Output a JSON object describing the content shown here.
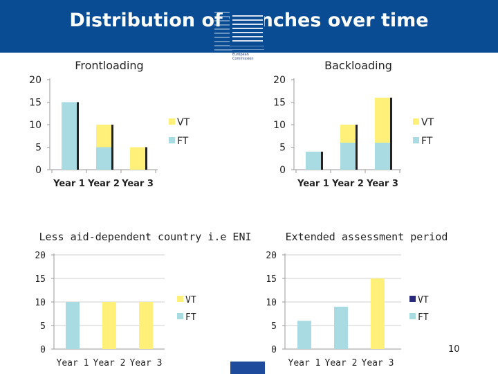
{
  "slide": {
    "title": "Distribution of tranches over time",
    "page_number": "10",
    "logo": {
      "line1": "European",
      "line2": "Commission"
    }
  },
  "colors": {
    "header_bg": "#0a4c93",
    "vt": "#fff07a",
    "ft": "#a9dbe2",
    "ft_legend_alt": "#8ccfdb",
    "bar_shadow": "#222222",
    "vt_legend_dark": "#2a2a7a"
  },
  "chart_data": [
    {
      "type": "bar",
      "stacked": true,
      "title": "Frontloading",
      "categories": [
        "Year 1",
        "Year 2",
        "Year 3"
      ],
      "series": [
        {
          "name": "FT",
          "values": [
            15,
            5,
            0
          ]
        },
        {
          "name": "VT",
          "values": [
            0,
            5,
            5
          ]
        }
      ],
      "ylim": [
        0,
        20
      ],
      "yticks": [
        "0",
        "5",
        "10",
        "15",
        "20"
      ],
      "legend": [
        "VT",
        "FT"
      ],
      "legend_position": "right",
      "grid": false
    },
    {
      "type": "bar",
      "stacked": true,
      "title": "Backloading",
      "categories": [
        "Year 1",
        "Year 2",
        "Year 3"
      ],
      "series": [
        {
          "name": "FT",
          "values": [
            4,
            6,
            6
          ]
        },
        {
          "name": "VT",
          "values": [
            0,
            4,
            10
          ]
        }
      ],
      "ylim": [
        0,
        20
      ],
      "yticks": [
        "0",
        "5",
        "10",
        "15",
        "20"
      ],
      "legend": [
        "VT",
        "FT"
      ],
      "legend_position": "right",
      "grid": false
    },
    {
      "type": "bar",
      "stacked": false,
      "title": "Less aid-dependent country i.e ENI",
      "categories": [
        "Year 1",
        "Year 2",
        "Year 3"
      ],
      "series": [
        {
          "name": "FT",
          "values": [
            10,
            0,
            0
          ]
        },
        {
          "name": "VT",
          "values": [
            0,
            10,
            10
          ]
        }
      ],
      "ylim": [
        0,
        20
      ],
      "yticks": [
        "0",
        "5",
        "10",
        "15",
        "20"
      ],
      "legend": [
        "VT",
        "FT"
      ],
      "legend_position": "right",
      "grid": true
    },
    {
      "type": "bar",
      "stacked": false,
      "title": "Extended assessment period",
      "categories": [
        "Year 1",
        "Year 2",
        "Year 3"
      ],
      "series": [
        {
          "name": "FT",
          "values": [
            6,
            9,
            0
          ]
        },
        {
          "name": "VT",
          "values": [
            0,
            0,
            15
          ]
        }
      ],
      "ylim": [
        0,
        20
      ],
      "yticks": [
        "0",
        "5",
        "10",
        "15",
        "20"
      ],
      "legend": [
        "VT",
        "FT"
      ],
      "legend_position": "right",
      "grid": true
    }
  ]
}
